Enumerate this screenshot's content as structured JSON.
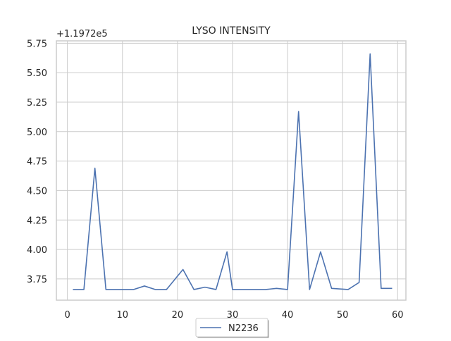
{
  "chart_data": {
    "type": "line",
    "title": "LYSO INTENSITY",
    "offset_label": "+1.1972e5",
    "xlabel": "",
    "ylabel": "",
    "xlim": [
      -2,
      61.5
    ],
    "ylim": [
      3.57,
      5.77
    ],
    "x_ticks": [
      0,
      10,
      20,
      30,
      40,
      50,
      60
    ],
    "x_tick_labels": [
      "0",
      "10",
      "20",
      "30",
      "40",
      "50",
      "60"
    ],
    "y_ticks": [
      3.75,
      4.0,
      4.25,
      4.5,
      4.75,
      5.0,
      5.25,
      5.5,
      5.75
    ],
    "y_tick_labels": [
      "3.75",
      "4.00",
      "4.25",
      "4.50",
      "4.75",
      "5.00",
      "5.25",
      "5.50",
      "5.75"
    ],
    "grid": true,
    "legend_position": "below-center",
    "colors": {
      "series": "#4c72b0",
      "grid": "#cccccc",
      "spine": "#cccccc"
    },
    "series": [
      {
        "name": "N2236",
        "x": [
          1,
          3,
          5,
          7,
          9,
          12,
          14,
          16,
          18,
          21,
          23,
          25,
          27,
          29,
          30,
          33,
          36,
          38,
          40,
          42,
          44,
          46,
          48,
          51,
          53,
          55,
          57,
          59
        ],
        "y": [
          3.66,
          3.66,
          4.69,
          3.66,
          3.66,
          3.66,
          3.69,
          3.66,
          3.66,
          3.83,
          3.66,
          3.68,
          3.66,
          3.98,
          3.66,
          3.66,
          3.66,
          3.67,
          3.66,
          5.17,
          3.66,
          3.98,
          3.67,
          3.66,
          3.72,
          5.66,
          3.67,
          3.67
        ]
      }
    ]
  }
}
